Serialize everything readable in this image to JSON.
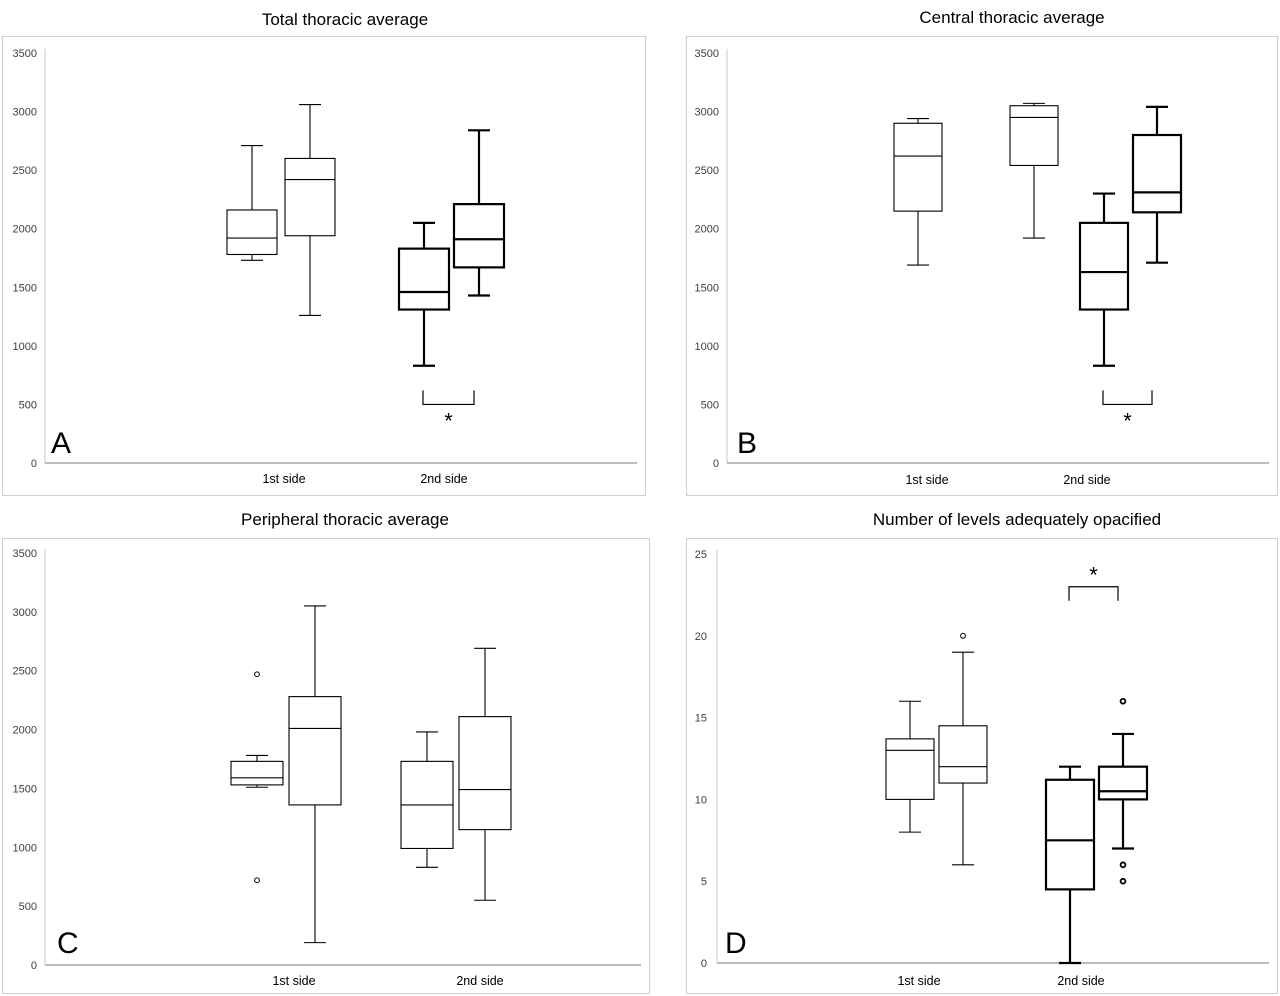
{
  "chart_data": [
    {
      "type": "box",
      "panel": "A",
      "title": "Total thoracic average",
      "categories": [
        "1st side",
        "2nd side"
      ],
      "yticks": [
        0,
        500,
        1000,
        1500,
        2000,
        2500,
        3000,
        3500
      ],
      "ylim": [
        0,
        3500
      ],
      "boxes": [
        {
          "category": "1st side",
          "style": "thin",
          "min": 1730,
          "q1": 1780,
          "median": 1920,
          "q3": 2160,
          "max": 2710,
          "outliers": []
        },
        {
          "category": "1st side",
          "style": "thin",
          "min": 1260,
          "q1": 1940,
          "median": 2420,
          "q3": 2600,
          "max": 3060,
          "outliers": []
        },
        {
          "category": "2nd side",
          "style": "bold",
          "min": 830,
          "q1": 1310,
          "median": 1460,
          "q3": 1830,
          "max": 2050,
          "outliers": []
        },
        {
          "category": "2nd side",
          "style": "bold",
          "min": 1430,
          "q1": 1670,
          "median": 1910,
          "q3": 2210,
          "max": 2840,
          "outliers": []
        }
      ],
      "significance": {
        "label": "*",
        "between": [
          2,
          3
        ],
        "y": 500,
        "direction": "below"
      }
    },
    {
      "type": "box",
      "panel": "B",
      "title": "Central thoracic average",
      "categories": [
        "1st side",
        "2nd side"
      ],
      "yticks": [
        0,
        500,
        1000,
        1500,
        2000,
        2500,
        3000,
        3500
      ],
      "ylim": [
        0,
        3500
      ],
      "boxes": [
        {
          "category": "1st side",
          "style": "thin",
          "min": 1690,
          "q1": 2150,
          "median": 2620,
          "q3": 2900,
          "max": 2940,
          "outliers": []
        },
        {
          "category": "1st side",
          "style": "thin",
          "min": 1920,
          "q1": 2540,
          "median": 2950,
          "q3": 3050,
          "max": 3070,
          "outliers": []
        },
        {
          "category": "2nd side",
          "style": "bold",
          "min": 830,
          "q1": 1310,
          "median": 1630,
          "q3": 2050,
          "max": 2300,
          "outliers": []
        },
        {
          "category": "2nd side",
          "style": "bold",
          "min": 1710,
          "q1": 2140,
          "median": 2310,
          "q3": 2800,
          "max": 3040,
          "outliers": []
        }
      ],
      "significance": {
        "label": "*",
        "between": [
          2,
          3
        ],
        "y": 500,
        "direction": "below"
      }
    },
    {
      "type": "box",
      "panel": "C",
      "title": "Peripheral thoracic average",
      "categories": [
        "1st side",
        "2nd side"
      ],
      "yticks": [
        0,
        500,
        1000,
        1500,
        2000,
        2500,
        3000,
        3500
      ],
      "ylim": [
        0,
        3500
      ],
      "boxes": [
        {
          "category": "1st side",
          "style": "thin",
          "min": 1510,
          "q1": 1530,
          "median": 1590,
          "q3": 1730,
          "max": 1780,
          "outliers": [
            2470,
            720
          ]
        },
        {
          "category": "1st side",
          "style": "thin",
          "min": 190,
          "q1": 1360,
          "median": 2010,
          "q3": 2280,
          "max": 3050,
          "outliers": []
        },
        {
          "category": "2nd side",
          "style": "thin",
          "min": 830,
          "q1": 990,
          "median": 1360,
          "q3": 1730,
          "max": 1980,
          "outliers": []
        },
        {
          "category": "2nd side",
          "style": "thin",
          "min": 550,
          "q1": 1150,
          "median": 1490,
          "q3": 2110,
          "max": 2690,
          "outliers": []
        }
      ]
    },
    {
      "type": "box",
      "panel": "D",
      "title": "Number of levels adequately opacified",
      "categories": [
        "1st side",
        "2nd side"
      ],
      "yticks": [
        0,
        5,
        10,
        15,
        20,
        25
      ],
      "ylim": [
        0,
        25
      ],
      "boxes": [
        {
          "category": "1st side",
          "style": "thin",
          "min": 8,
          "q1": 10,
          "median": 13,
          "q3": 13.7,
          "max": 16,
          "outliers": []
        },
        {
          "category": "1st side",
          "style": "thin",
          "min": 6,
          "q1": 11,
          "median": 12,
          "q3": 14.5,
          "max": 19,
          "outliers": [
            20
          ]
        },
        {
          "category": "2nd side",
          "style": "bold",
          "min": 0,
          "q1": 4.5,
          "median": 7.5,
          "q3": 11.2,
          "max": 12,
          "outliers": []
        },
        {
          "category": "2nd side",
          "style": "bold",
          "min": 7,
          "q1": 10,
          "median": 10.5,
          "q3": 12,
          "max": 14,
          "outliers": [
            16,
            6,
            5
          ]
        }
      ],
      "significance": {
        "label": "*",
        "between": [
          2,
          3
        ],
        "y": 23,
        "direction": "above"
      }
    }
  ]
}
